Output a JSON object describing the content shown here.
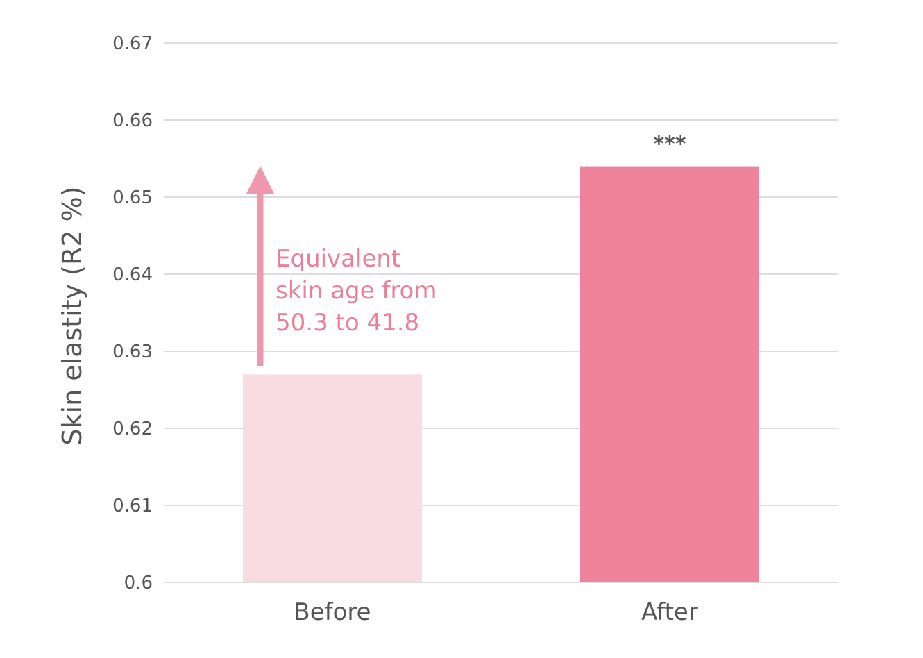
{
  "chart_data": {
    "type": "bar",
    "categories": [
      "Before",
      "After"
    ],
    "values": [
      0.627,
      0.654
    ],
    "ylabel": "Skin elastity (R2 %)",
    "ylim": [
      0.6,
      0.67
    ],
    "yticks": [
      "0.6",
      "0.61",
      "0.62",
      "0.63",
      "0.64",
      "0.65",
      "0.66",
      "0.67"
    ],
    "grid": true,
    "bar_colors": [
      "#f9dce2",
      "#ee8399"
    ],
    "arrow_color": "#ef97ad",
    "significance": {
      "category": "After",
      "label": "***"
    },
    "annotation": {
      "lines": [
        "Equivalent",
        "skin age from",
        "50.3 to 41.8"
      ],
      "color": "#ec7f98"
    }
  }
}
